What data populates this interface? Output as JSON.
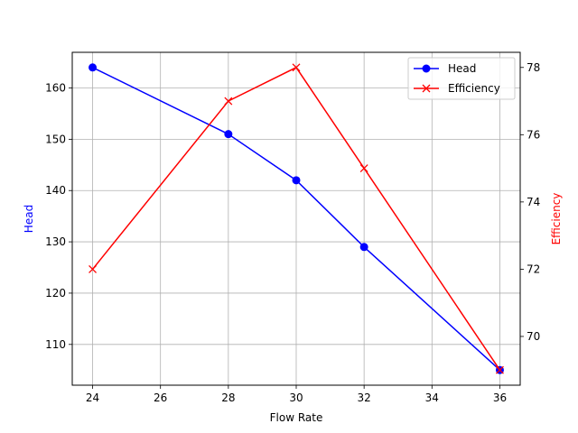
{
  "chart_data": {
    "type": "line",
    "title": "",
    "x": [
      24,
      28,
      30,
      32,
      36
    ],
    "xlabel": "Flow Rate",
    "xlim": [
      23.4,
      36.6
    ],
    "xticks": [
      24,
      26,
      28,
      30,
      32,
      34,
      36
    ],
    "grid": true,
    "legend_position": "top-right",
    "series": [
      {
        "name": "Head",
        "axis": "left",
        "values": [
          164,
          151,
          142,
          129,
          105
        ],
        "color": "#0000ff",
        "marker": "circle"
      },
      {
        "name": "Efficiency",
        "axis": "right",
        "values": [
          72,
          77,
          78,
          75,
          69
        ],
        "color": "#ff0000",
        "marker": "x"
      }
    ],
    "y_left": {
      "label": "Head",
      "color": "#0000ff",
      "lim": [
        102.05,
        166.95
      ],
      "ticks": [
        110,
        120,
        130,
        140,
        150,
        160
      ]
    },
    "y_right": {
      "label": "Efficiency",
      "color": "#ff0000",
      "lim": [
        68.55,
        78.45
      ],
      "ticks": [
        70,
        72,
        74,
        76,
        78
      ]
    }
  }
}
